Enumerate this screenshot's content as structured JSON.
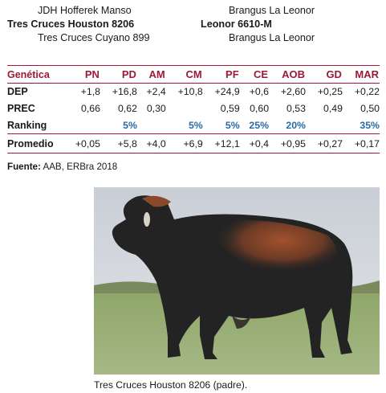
{
  "pedigree": {
    "sire_sire": "JDH Hofferek Manso",
    "sire": "Tres Cruces Houston 8206",
    "sire_dam": "Tres Cruces Cuyano 899",
    "dam_sire": "Brangus La Leonor",
    "dam": "Leonor 6610-M",
    "dam_dam": "Brangus La Leonor"
  },
  "table": {
    "corner_label": "Genética",
    "columns": [
      "PN",
      "PD",
      "AM",
      "CM",
      "PF",
      "CE",
      "AOB",
      "GD",
      "MAR"
    ],
    "rows": [
      {
        "label": "DEP",
        "values": [
          "+1,8",
          "+16,8",
          "+2,4",
          "+10,8",
          "+24,9",
          "+0,6",
          "+2,60",
          "+0,25",
          "+0,22"
        ]
      },
      {
        "label": "PREC",
        "values": [
          "0,66",
          "0,62",
          "0,30",
          "",
          "0,59",
          "0,60",
          "0,53",
          "0,49",
          "0,50"
        ]
      },
      {
        "label": "Ranking",
        "values": [
          "",
          "5%",
          "",
          "5%",
          "5%",
          "25%",
          "20%",
          "",
          "35%"
        ]
      },
      {
        "label": "Promedio",
        "values": [
          "+0,05",
          "+5,8",
          "+4,0",
          "+6,9",
          "+12,1",
          "+0,4",
          "+0,95",
          "+0,27",
          "+0,17"
        ]
      }
    ],
    "colors": {
      "accent": "#9b1b36",
      "ranking": "#2b6aa3"
    }
  },
  "source": {
    "label": "Fuente:",
    "text": " AAB, ERBra 2018"
  },
  "photo": {
    "subject": "brangus-bull-photo"
  },
  "caption": "Tres Cruces Houston 8206 (padre)."
}
